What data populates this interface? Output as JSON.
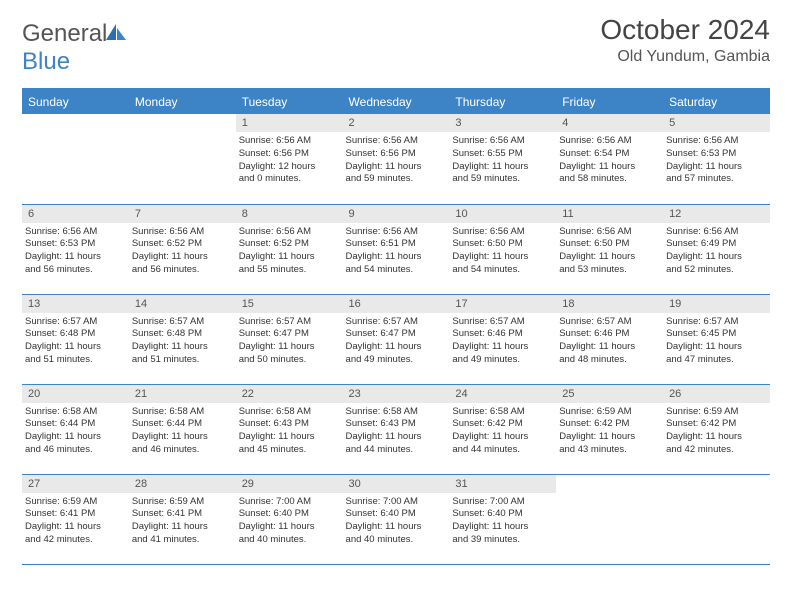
{
  "logo": {
    "part1": "General",
    "part2": "Blue"
  },
  "title": "October 2024",
  "location": "Old Yundum, Gambia",
  "colors": {
    "header_bg": "#3d84c6",
    "header_fg": "#ffffff",
    "daynum_bg": "#e9e9e9",
    "text": "#333333",
    "logo_gray": "#555555",
    "logo_blue": "#3d84c6"
  },
  "weekdays": [
    "Sunday",
    "Monday",
    "Tuesday",
    "Wednesday",
    "Thursday",
    "Friday",
    "Saturday"
  ],
  "weeks": [
    [
      null,
      null,
      {
        "n": "1",
        "sr": "Sunrise: 6:56 AM",
        "ss": "Sunset: 6:56 PM",
        "dl1": "Daylight: 12 hours",
        "dl2": "and 0 minutes."
      },
      {
        "n": "2",
        "sr": "Sunrise: 6:56 AM",
        "ss": "Sunset: 6:56 PM",
        "dl1": "Daylight: 11 hours",
        "dl2": "and 59 minutes."
      },
      {
        "n": "3",
        "sr": "Sunrise: 6:56 AM",
        "ss": "Sunset: 6:55 PM",
        "dl1": "Daylight: 11 hours",
        "dl2": "and 59 minutes."
      },
      {
        "n": "4",
        "sr": "Sunrise: 6:56 AM",
        "ss": "Sunset: 6:54 PM",
        "dl1": "Daylight: 11 hours",
        "dl2": "and 58 minutes."
      },
      {
        "n": "5",
        "sr": "Sunrise: 6:56 AM",
        "ss": "Sunset: 6:53 PM",
        "dl1": "Daylight: 11 hours",
        "dl2": "and 57 minutes."
      }
    ],
    [
      {
        "n": "6",
        "sr": "Sunrise: 6:56 AM",
        "ss": "Sunset: 6:53 PM",
        "dl1": "Daylight: 11 hours",
        "dl2": "and 56 minutes."
      },
      {
        "n": "7",
        "sr": "Sunrise: 6:56 AM",
        "ss": "Sunset: 6:52 PM",
        "dl1": "Daylight: 11 hours",
        "dl2": "and 56 minutes."
      },
      {
        "n": "8",
        "sr": "Sunrise: 6:56 AM",
        "ss": "Sunset: 6:52 PM",
        "dl1": "Daylight: 11 hours",
        "dl2": "and 55 minutes."
      },
      {
        "n": "9",
        "sr": "Sunrise: 6:56 AM",
        "ss": "Sunset: 6:51 PM",
        "dl1": "Daylight: 11 hours",
        "dl2": "and 54 minutes."
      },
      {
        "n": "10",
        "sr": "Sunrise: 6:56 AM",
        "ss": "Sunset: 6:50 PM",
        "dl1": "Daylight: 11 hours",
        "dl2": "and 54 minutes."
      },
      {
        "n": "11",
        "sr": "Sunrise: 6:56 AM",
        "ss": "Sunset: 6:50 PM",
        "dl1": "Daylight: 11 hours",
        "dl2": "and 53 minutes."
      },
      {
        "n": "12",
        "sr": "Sunrise: 6:56 AM",
        "ss": "Sunset: 6:49 PM",
        "dl1": "Daylight: 11 hours",
        "dl2": "and 52 minutes."
      }
    ],
    [
      {
        "n": "13",
        "sr": "Sunrise: 6:57 AM",
        "ss": "Sunset: 6:48 PM",
        "dl1": "Daylight: 11 hours",
        "dl2": "and 51 minutes."
      },
      {
        "n": "14",
        "sr": "Sunrise: 6:57 AM",
        "ss": "Sunset: 6:48 PM",
        "dl1": "Daylight: 11 hours",
        "dl2": "and 51 minutes."
      },
      {
        "n": "15",
        "sr": "Sunrise: 6:57 AM",
        "ss": "Sunset: 6:47 PM",
        "dl1": "Daylight: 11 hours",
        "dl2": "and 50 minutes."
      },
      {
        "n": "16",
        "sr": "Sunrise: 6:57 AM",
        "ss": "Sunset: 6:47 PM",
        "dl1": "Daylight: 11 hours",
        "dl2": "and 49 minutes."
      },
      {
        "n": "17",
        "sr": "Sunrise: 6:57 AM",
        "ss": "Sunset: 6:46 PM",
        "dl1": "Daylight: 11 hours",
        "dl2": "and 49 minutes."
      },
      {
        "n": "18",
        "sr": "Sunrise: 6:57 AM",
        "ss": "Sunset: 6:46 PM",
        "dl1": "Daylight: 11 hours",
        "dl2": "and 48 minutes."
      },
      {
        "n": "19",
        "sr": "Sunrise: 6:57 AM",
        "ss": "Sunset: 6:45 PM",
        "dl1": "Daylight: 11 hours",
        "dl2": "and 47 minutes."
      }
    ],
    [
      {
        "n": "20",
        "sr": "Sunrise: 6:58 AM",
        "ss": "Sunset: 6:44 PM",
        "dl1": "Daylight: 11 hours",
        "dl2": "and 46 minutes."
      },
      {
        "n": "21",
        "sr": "Sunrise: 6:58 AM",
        "ss": "Sunset: 6:44 PM",
        "dl1": "Daylight: 11 hours",
        "dl2": "and 46 minutes."
      },
      {
        "n": "22",
        "sr": "Sunrise: 6:58 AM",
        "ss": "Sunset: 6:43 PM",
        "dl1": "Daylight: 11 hours",
        "dl2": "and 45 minutes."
      },
      {
        "n": "23",
        "sr": "Sunrise: 6:58 AM",
        "ss": "Sunset: 6:43 PM",
        "dl1": "Daylight: 11 hours",
        "dl2": "and 44 minutes."
      },
      {
        "n": "24",
        "sr": "Sunrise: 6:58 AM",
        "ss": "Sunset: 6:42 PM",
        "dl1": "Daylight: 11 hours",
        "dl2": "and 44 minutes."
      },
      {
        "n": "25",
        "sr": "Sunrise: 6:59 AM",
        "ss": "Sunset: 6:42 PM",
        "dl1": "Daylight: 11 hours",
        "dl2": "and 43 minutes."
      },
      {
        "n": "26",
        "sr": "Sunrise: 6:59 AM",
        "ss": "Sunset: 6:42 PM",
        "dl1": "Daylight: 11 hours",
        "dl2": "and 42 minutes."
      }
    ],
    [
      {
        "n": "27",
        "sr": "Sunrise: 6:59 AM",
        "ss": "Sunset: 6:41 PM",
        "dl1": "Daylight: 11 hours",
        "dl2": "and 42 minutes."
      },
      {
        "n": "28",
        "sr": "Sunrise: 6:59 AM",
        "ss": "Sunset: 6:41 PM",
        "dl1": "Daylight: 11 hours",
        "dl2": "and 41 minutes."
      },
      {
        "n": "29",
        "sr": "Sunrise: 7:00 AM",
        "ss": "Sunset: 6:40 PM",
        "dl1": "Daylight: 11 hours",
        "dl2": "and 40 minutes."
      },
      {
        "n": "30",
        "sr": "Sunrise: 7:00 AM",
        "ss": "Sunset: 6:40 PM",
        "dl1": "Daylight: 11 hours",
        "dl2": "and 40 minutes."
      },
      {
        "n": "31",
        "sr": "Sunrise: 7:00 AM",
        "ss": "Sunset: 6:40 PM",
        "dl1": "Daylight: 11 hours",
        "dl2": "and 39 minutes."
      },
      null,
      null
    ]
  ]
}
